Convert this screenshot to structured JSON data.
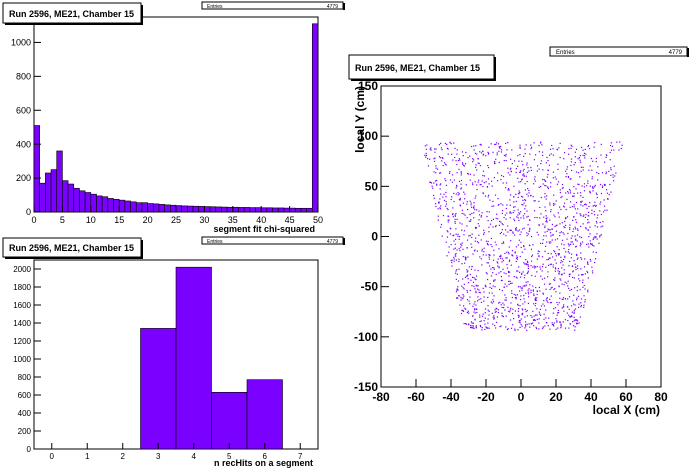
{
  "chart_data": [
    {
      "type": "bar",
      "panel": "top-left",
      "title": "Run 2596, ME21, Chamber 15",
      "stats": {
        "label": "Entries",
        "value": "4779"
      },
      "xlabel": "segment fit chi-squared",
      "ylabel": "",
      "xlim": [
        0,
        50
      ],
      "ylim": [
        0,
        1150
      ],
      "xticks": [
        0,
        5,
        10,
        15,
        20,
        25,
        30,
        35,
        40,
        45,
        50
      ],
      "yticks": [
        0,
        200,
        400,
        600,
        800,
        1000
      ],
      "bin_width": 1,
      "bin_start": 0,
      "values": [
        510,
        170,
        230,
        250,
        360,
        185,
        165,
        140,
        125,
        115,
        105,
        95,
        90,
        80,
        75,
        70,
        65,
        60,
        55,
        55,
        50,
        48,
        45,
        42,
        40,
        38,
        36,
        35,
        34,
        33,
        32,
        31,
        30,
        29,
        28,
        28,
        27,
        27,
        26,
        26,
        25,
        25,
        24,
        24,
        23,
        23,
        22,
        22,
        22,
        1110
      ],
      "color": "#7a00ff"
    },
    {
      "type": "bar",
      "panel": "bottom-left",
      "title": "Run 2596, ME21, Chamber 15",
      "stats": {
        "label": "Entries",
        "value": "4779"
      },
      "xlabel": "n recHits on a segment",
      "ylabel": "",
      "xlim": [
        -0.5,
        7.5
      ],
      "ylim": [
        0,
        2100
      ],
      "xticks": [
        0,
        1,
        2,
        3,
        4,
        5,
        6,
        7
      ],
      "yticks": [
        0,
        200,
        400,
        600,
        800,
        1000,
        1200,
        1400,
        1600,
        1800,
        2000
      ],
      "bin_width": 1,
      "bin_start": -0.5,
      "values": [
        0,
        0,
        0,
        1340,
        2020,
        630,
        770,
        0
      ],
      "color": "#7a00ff"
    },
    {
      "type": "scatter",
      "panel": "right",
      "title": "Run 2596, ME21, Chamber 15",
      "stats": {
        "label": "Entries",
        "value": "4779"
      },
      "xlabel": "local X (cm)",
      "ylabel": "local Y (cm)",
      "xlim": [
        -80,
        80
      ],
      "ylim": [
        -150,
        150
      ],
      "xticks": [
        -80,
        -60,
        -40,
        -20,
        0,
        20,
        40,
        60,
        80
      ],
      "yticks": [
        -150,
        -100,
        -50,
        0,
        50,
        100,
        150
      ],
      "region": {
        "y_top": 95,
        "y_bottom": -93,
        "half_width_top": 58,
        "half_width_bottom": 33
      },
      "entries": 4779,
      "color": "#7a00ff"
    }
  ]
}
